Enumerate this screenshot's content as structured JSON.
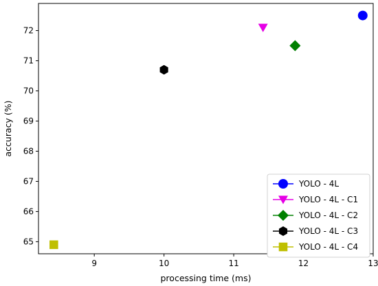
{
  "chart_data": {
    "type": "scatter",
    "xlabel": "processing time (ms)",
    "ylabel": "accuracy (%)",
    "xlim": [
      8.2,
      13.0
    ],
    "ylim": [
      64.6,
      72.9
    ],
    "xticks": [
      9,
      10,
      11,
      12,
      13
    ],
    "yticks": [
      65,
      66,
      67,
      68,
      69,
      70,
      71,
      72
    ],
    "grid": false,
    "legend_position": "bottom-right",
    "series": [
      {
        "name": "YOLO - 4L",
        "x": 12.85,
        "y": 72.5,
        "marker": "circle",
        "color": "#0000ff"
      },
      {
        "name": "YOLO - 4L - C1",
        "x": 11.42,
        "y": 72.1,
        "marker": "triangle-down",
        "color": "#e600e6"
      },
      {
        "name": "YOLO - 4L - C2",
        "x": 11.88,
        "y": 71.5,
        "marker": "diamond",
        "color": "#008000"
      },
      {
        "name": "YOLO - 4L - C3",
        "x": 10.0,
        "y": 70.7,
        "marker": "hexagon",
        "color": "#000000"
      },
      {
        "name": "YOLO - 4L - C4",
        "x": 8.42,
        "y": 64.9,
        "marker": "square",
        "color": "#bfbf00"
      }
    ]
  }
}
